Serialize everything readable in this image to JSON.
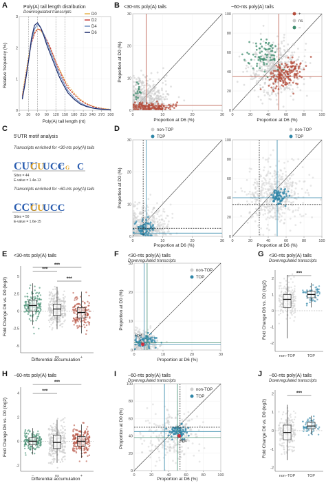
{
  "colors": {
    "d0": "#e6b34a",
    "d2": "#c8403c",
    "d4": "#6f8fc1",
    "d6": "#1c2b6b",
    "up": "#b44b3a",
    "ns": "#c8c8c8",
    "down": "#3f8c6e",
    "top": "#2f86a8",
    "nontop": "#cfcfcf",
    "grid": "#ececec",
    "frame": "#888888"
  },
  "panels": {
    "A": {
      "label": "A",
      "title": "Poly(A) tail length distribution",
      "subtitle": "Downregulated transcripts",
      "xlabel": "Poly(A) tail length (nt)",
      "ylabel": "Relative frequency (%)"
    },
    "B": {
      "label": "B",
      "title_left": "<30-nts poly(A) tails",
      "title_right": "~60-nts poly(A) tails",
      "xlabel": "Proportion at D6 (%)",
      "ylabel": "Proportion at D0 (%)"
    },
    "C": {
      "label": "C",
      "title": "5'UTR motif analysis",
      "motif1_title": "Transcripts enriched for <30-nts poly(A) tails",
      "motif1_sites": "Sites = 44",
      "motif1_evalue": "E-value = 1.4e-13",
      "motif2_title": "Transcripts enriched for ~60-nts poly(A) tails",
      "motif2_sites": "Sites = 50",
      "motif2_evalue": "E-value = 1.6e-15"
    },
    "D": {
      "label": "D",
      "xlabel": "Proportion at D6 (%)",
      "ylabel": "Proportion at D0 (%)"
    },
    "E": {
      "label": "E",
      "title": "<30-nts poly(A) tails",
      "xlabel": "Differential accumulation",
      "ylabel": "Fold Change D6 vs. D0 (log2)"
    },
    "F": {
      "label": "F",
      "title": "<30-nts poly(A) tails",
      "subtitle": "Downregulated transcripts",
      "xlabel": "Proportion at D6 (%)",
      "ylabel": "Proportion at D0 (%)",
      "annotation": "Rpl4"
    },
    "G": {
      "label": "G",
      "title": "<30-nts poly(A) tails",
      "subtitle": "Downregulated transcripts",
      "ylabel": "Fold Change D6 vs. D0 (log2)"
    },
    "H": {
      "label": "H",
      "title": "~60-nts poly(A) tails",
      "xlabel": "Differential accumulation",
      "ylabel": "Fold Change D6 vs. D0 (log2)"
    },
    "I": {
      "label": "I",
      "title": "~60-nts poly(A) tails",
      "subtitle": "Downregulated transcripts",
      "xlabel": "Proportion at D6 (%)",
      "ylabel": "Proportion at D0 (%)",
      "annotation": "Rpl4"
    },
    "J": {
      "label": "J",
      "title": "~60-nts poly(A) tails",
      "subtitle": "Downregulated transcripts",
      "ylabel": "Fold Change D6 vs. D0 (log2)"
    }
  },
  "significance": "***",
  "chart_data": [
    {
      "panel": "A",
      "type": "line",
      "xlim": [
        0,
        300
      ],
      "ylim": [
        0,
        3
      ],
      "xticks": [
        0,
        30,
        60,
        90,
        120,
        150,
        180,
        210,
        240,
        270,
        300
      ],
      "yticks": [
        0,
        1,
        2,
        3
      ],
      "ref_lines_x": [
        30,
        60,
        120,
        150
      ],
      "x": [
        10,
        20,
        30,
        40,
        50,
        60,
        70,
        80,
        90,
        100,
        110,
        120,
        130,
        140,
        150,
        160,
        180,
        200,
        220,
        240,
        260,
        280,
        300
      ],
      "series": [
        {
          "name": "D0",
          "values": [
            0.5,
            1.1,
            1.7,
            2.2,
            2.5,
            2.6,
            2.55,
            2.4,
            2.2,
            2.0,
            1.8,
            1.55,
            1.35,
            1.15,
            0.95,
            0.8,
            0.55,
            0.35,
            0.22,
            0.14,
            0.08,
            0.05,
            0.03
          ]
        },
        {
          "name": "D2",
          "values": [
            0.45,
            1.0,
            1.6,
            2.15,
            2.45,
            2.6,
            2.58,
            2.45,
            2.25,
            2.05,
            1.8,
            1.55,
            1.3,
            1.1,
            0.9,
            0.72,
            0.5,
            0.32,
            0.2,
            0.12,
            0.07,
            0.04,
            0.02
          ]
        },
        {
          "name": "D4",
          "values": [
            0.4,
            0.95,
            1.55,
            2.2,
            2.6,
            2.75,
            2.65,
            2.45,
            2.2,
            1.95,
            1.7,
            1.45,
            1.2,
            1.0,
            0.8,
            0.62,
            0.4,
            0.24,
            0.14,
            0.08,
            0.05,
            0.03,
            0.02
          ]
        },
        {
          "name": "D6",
          "values": [
            0.35,
            0.9,
            1.55,
            2.3,
            2.72,
            2.8,
            2.65,
            2.4,
            2.1,
            1.85,
            1.6,
            1.35,
            1.1,
            0.9,
            0.72,
            0.55,
            0.35,
            0.2,
            0.12,
            0.07,
            0.04,
            0.02,
            0.01
          ]
        }
      ]
    },
    {
      "panel": "B-left",
      "type": "scatter",
      "xlim": [
        0,
        30
      ],
      "ylim": [
        0,
        30
      ],
      "xticks": [
        0,
        10,
        20,
        30
      ],
      "yticks": [
        0,
        10,
        20,
        30
      ],
      "series": [
        {
          "name": "+"
        },
        {
          "name": "ns"
        },
        {
          "name": "–"
        }
      ],
      "vline": 4.5,
      "hline": 1.5
    },
    {
      "panel": "B-right",
      "type": "scatter",
      "xlim": [
        0,
        100
      ],
      "ylim": [
        0,
        100
      ],
      "xticks": [
        0,
        20,
        40,
        60,
        80,
        100
      ],
      "yticks": [
        0,
        20,
        40,
        60,
        80,
        100
      ],
      "series": [
        {
          "name": "+"
        },
        {
          "name": "ns"
        },
        {
          "name": "–"
        }
      ],
      "vline": 52,
      "hline": 35
    },
    {
      "panel": "D-left",
      "type": "scatter",
      "xlim": [
        0,
        30
      ],
      "ylim": [
        0,
        30
      ],
      "xticks": [
        0,
        10,
        20,
        30
      ],
      "yticks": [
        0,
        10,
        20,
        30
      ],
      "series": [
        {
          "name": "non-TOP"
        },
        {
          "name": "TOP"
        }
      ],
      "vlines": [
        3.5,
        4.5
      ],
      "hlines": [
        2.5,
        1.0
      ]
    },
    {
      "panel": "D-right",
      "type": "scatter",
      "xlim": [
        0,
        100
      ],
      "ylim": [
        0,
        100
      ],
      "xticks": [
        0,
        20,
        40,
        60,
        80,
        100
      ],
      "yticks": [
        0,
        20,
        40,
        60,
        80,
        100
      ],
      "series": [
        {
          "name": "non-TOP"
        },
        {
          "name": "TOP"
        }
      ],
      "vlines": [
        30,
        50
      ],
      "hlines": [
        40,
        33
      ]
    },
    {
      "panel": "E",
      "type": "box",
      "categories": [
        "–",
        "ns",
        "+"
      ],
      "ylim": [
        -6,
        6.5
      ],
      "yticks": [
        -5,
        -2.5,
        0,
        2.5,
        5
      ],
      "medians": [
        0.8,
        0.3,
        -0.2
      ],
      "q1": [
        0.0,
        -0.6,
        -1.0
      ],
      "q3": [
        1.6,
        1.0,
        0.5
      ],
      "whisk_lo": [
        -2.0,
        -2.6,
        -3.2
      ],
      "whisk_hi": [
        4.0,
        3.5,
        2.8
      ]
    },
    {
      "panel": "F",
      "type": "scatter",
      "xlim": [
        0,
        30
      ],
      "ylim": [
        0,
        30
      ],
      "xticks": [
        0,
        10,
        20,
        30
      ],
      "yticks": [
        0,
        10,
        20,
        30
      ],
      "series": [
        {
          "name": "non-TOP"
        },
        {
          "name": "TOP"
        }
      ],
      "vlines": [
        3.5,
        4.5
      ],
      "hlines": [
        2.5,
        2.0
      ],
      "highlight": {
        "label": "Rpl4",
        "x": 3,
        "y": 2
      }
    },
    {
      "panel": "G",
      "type": "box",
      "categories": [
        "non−TOP",
        "TOP"
      ],
      "ylim": [
        -2.5,
        2.5
      ],
      "yticks": [
        -2,
        -1,
        0,
        1,
        2
      ],
      "medians": [
        0.7,
        1.0
      ],
      "q1": [
        0.2,
        0.8
      ],
      "q3": [
        1.0,
        1.2
      ],
      "whisk_lo": [
        -1.7,
        0.2
      ],
      "whisk_hi": [
        2.2,
        1.7
      ]
    },
    {
      "panel": "H",
      "type": "box",
      "categories": [
        "–",
        "ns",
        "+"
      ],
      "ylim": [
        -2.5,
        4.5
      ],
      "yticks": [
        -2,
        0,
        2,
        4
      ],
      "medians": [
        0.0,
        -0.1,
        0.0
      ],
      "q1": [
        -0.3,
        -0.6,
        -0.4
      ],
      "q3": [
        0.3,
        0.5,
        0.4
      ],
      "whisk_lo": [
        -1.1,
        -1.8,
        -1.4
      ],
      "whisk_hi": [
        1.1,
        1.8,
        1.4
      ]
    },
    {
      "panel": "I",
      "type": "scatter",
      "xlim": [
        0,
        100
      ],
      "ylim": [
        0,
        100
      ],
      "xticks": [
        0,
        20,
        40,
        60,
        80,
        100
      ],
      "yticks": [
        0,
        20,
        40,
        60,
        80,
        100
      ],
      "series": [
        {
          "name": "non-TOP"
        },
        {
          "name": "TOP"
        }
      ],
      "vlines": [
        35,
        50,
        53
      ],
      "hlines": [
        50,
        45,
        38
      ],
      "highlight": {
        "label": "Rpl4",
        "x": 52,
        "y": 40
      }
    },
    {
      "panel": "J",
      "type": "box",
      "categories": [
        "non−TOP",
        "TOP"
      ],
      "ylim": [
        -2.2,
        2.2
      ],
      "yticks": [
        -2,
        -1,
        0,
        1,
        2
      ],
      "medians": [
        -0.1,
        0.25
      ],
      "q1": [
        -0.5,
        0.1
      ],
      "q3": [
        0.3,
        0.45
      ],
      "whisk_lo": [
        -1.6,
        -0.2
      ],
      "whisk_hi": [
        1.4,
        0.8
      ]
    }
  ]
}
